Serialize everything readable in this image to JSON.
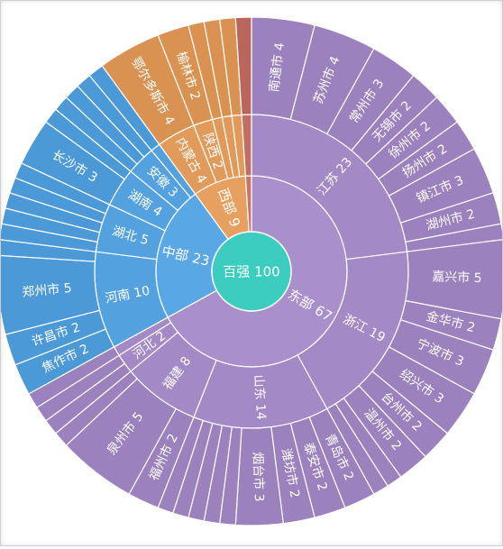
{
  "chart_data": {
    "type": "sunburst",
    "title": "",
    "root": {
      "name": "百强",
      "value": 100
    },
    "colors": {
      "center": "#3dccc0",
      "中部": "#5aa7e6",
      "西部": "#e8a060",
      "东部": "#a98fcc",
      "other": "#c9746a"
    },
    "regions": [
      {
        "name": "东部",
        "value": 67,
        "children": [
          {
            "name": "江苏",
            "value": 23,
            "children": [
              {
                "name": "南通市",
                "value": 4
              },
              {
                "name": "苏州市",
                "value": 4
              },
              {
                "name": "常州市",
                "value": 3
              },
              {
                "name": "无锡市",
                "value": 2
              },
              {
                "name": "徐州市",
                "value": 2
              },
              {
                "name": "扬州市",
                "value": 2
              },
              {
                "name": "镇江市",
                "value": 3
              },
              {
                "name": "湖州市",
                "value": 2
              }
            ]
          },
          {
            "name": "浙江",
            "value": 19,
            "children": [
              {
                "name": "嘉兴市",
                "value": 5
              },
              {
                "name": "金华市",
                "value": 2
              },
              {
                "name": "宁波市",
                "value": 3
              },
              {
                "name": "绍兴市",
                "value": 3
              },
              {
                "name": "台州市",
                "value": 2
              },
              {
                "name": "温州市",
                "value": 2
              }
            ]
          },
          {
            "name": "山东",
            "value": 14,
            "children": [
              {
                "name": "青岛市",
                "value": 2
              },
              {
                "name": "泰安市",
                "value": 2
              },
              {
                "name": "潍坊市",
                "value": 2
              },
              {
                "name": "烟台市",
                "value": 3
              }
            ]
          },
          {
            "name": "福建",
            "value": 8,
            "children": [
              {
                "name": "福州市",
                "value": 2
              },
              {
                "name": "泉州市",
                "value": 5
              }
            ]
          },
          {
            "name": "河北",
            "value": 2,
            "children": []
          }
        ]
      },
      {
        "name": "中部",
        "value": 23,
        "children": [
          {
            "name": "河南",
            "value": 10,
            "children": [
              {
                "name": "焦作市",
                "value": 2
              },
              {
                "name": "许昌市",
                "value": 2
              },
              {
                "name": "郑州市",
                "value": 5
              }
            ]
          },
          {
            "name": "湖北",
            "value": 5,
            "children": []
          },
          {
            "name": "湖南",
            "value": 4,
            "children": [
              {
                "name": "长沙市",
                "value": 3
              }
            ]
          },
          {
            "name": "安徽",
            "value": 3,
            "children": []
          }
        ]
      },
      {
        "name": "西部",
        "value": 9,
        "children": [
          {
            "name": "内蒙古",
            "value": 4,
            "children": [
              {
                "name": "鄂尔多斯市",
                "value": 4
              }
            ]
          },
          {
            "name": "陕西",
            "value": 2,
            "children": [
              {
                "name": "榆林市",
                "value": 2
              }
            ]
          }
        ]
      },
      {
        "name": "",
        "value": 1,
        "children": []
      }
    ]
  }
}
